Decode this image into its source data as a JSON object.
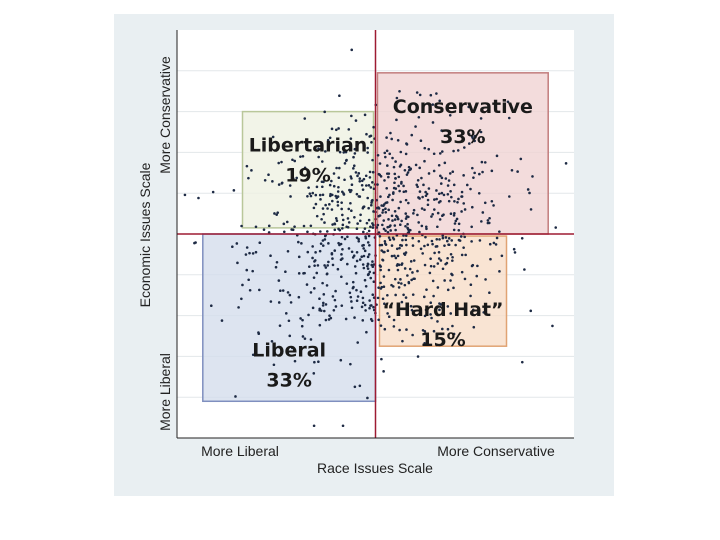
{
  "chart_data": {
    "type": "scatter",
    "xlabel": "Race Issues Scale",
    "ylabel": "Economic Issues Scale",
    "xlim": [
      -10,
      10
    ],
    "ylim": [
      -10,
      10
    ],
    "x_tick_labels": [
      "More Liberal",
      "More Conservative"
    ],
    "y_tick_labels": [
      "More Liberal",
      "More Conservative"
    ],
    "grid": true,
    "reference_lines": {
      "x": 0,
      "y": 0,
      "color": "#9e1b32"
    },
    "quadrants": [
      {
        "name": "Libertarian",
        "pct": "19%",
        "range": [
          -6.7,
          -0.1,
          0.3,
          6.0
        ],
        "fill": "#eef1e2",
        "stroke": "#b9c79a"
      },
      {
        "name": "Conservative",
        "pct": "33%",
        "range": [
          0.1,
          8.7,
          0.0,
          7.9
        ],
        "fill": "#f0d2d2",
        "stroke": "#c27d7d"
      },
      {
        "name": "Liberal",
        "pct": "33%",
        "range": [
          -8.7,
          0.0,
          -8.2,
          0.0
        ],
        "fill": "#d4dcec",
        "stroke": "#7f8fbf"
      },
      {
        "name": "“Hard Hat”",
        "pct": "15%",
        "range": [
          0.2,
          6.6,
          -5.5,
          -0.1
        ],
        "fill": "#f7dcc6",
        "stroke": "#e0a373"
      }
    ],
    "point_count": 900,
    "point_color": "#1d2a44",
    "panel_background": "#e9eff2"
  }
}
